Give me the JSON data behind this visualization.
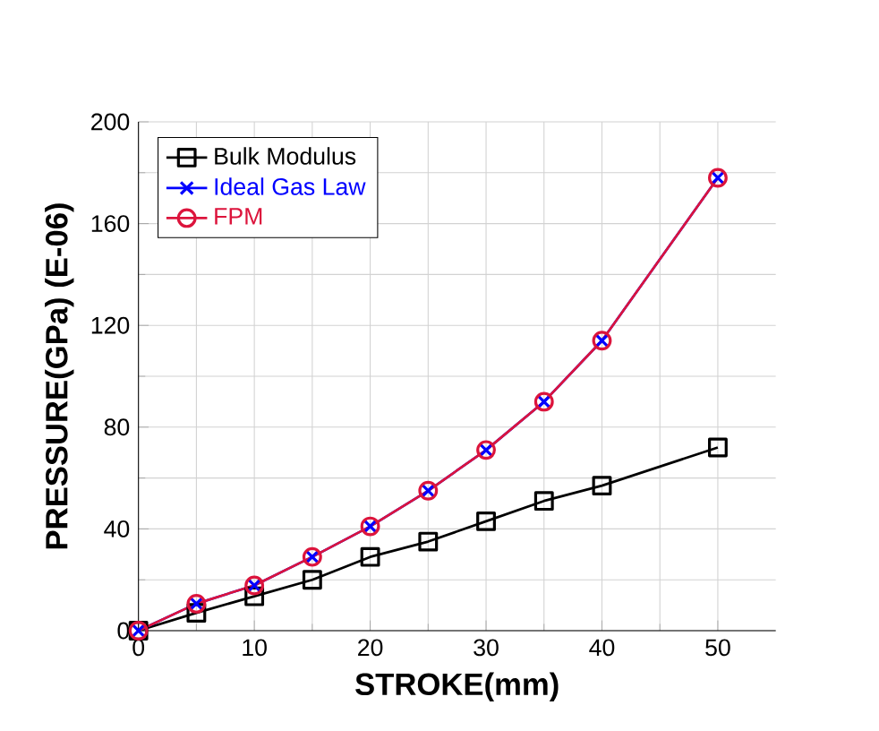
{
  "chart_data": {
    "type": "line",
    "xlabel": "STROKE(mm)",
    "ylabel": "PRESSURE(GPa) (E-06)",
    "xlim": [
      0,
      55
    ],
    "ylim": [
      0,
      200
    ],
    "xticks": [
      0,
      10,
      20,
      30,
      40,
      50
    ],
    "yticks": [
      0,
      40,
      80,
      120,
      160,
      200
    ],
    "grid": true,
    "legend": "top left",
    "line_style": "solid",
    "series": [
      {
        "name": "Bulk Modulus",
        "color": "#000000",
        "marker": "square",
        "x": [
          0,
          5,
          10,
          15,
          20,
          25,
          30,
          35,
          40,
          50
        ],
        "values": [
          0,
          7,
          13.5,
          20,
          29,
          35,
          43,
          51,
          57,
          72
        ]
      },
      {
        "name": "Ideal Gas Law",
        "color": "#0000ff",
        "marker": "cross",
        "x": [
          0,
          5,
          10,
          15,
          20,
          25,
          30,
          35,
          40,
          50
        ],
        "values": [
          0,
          10.6,
          17.8,
          29,
          41,
          55,
          71,
          90,
          114,
          178
        ]
      },
      {
        "name": "FPM",
        "color": "#dc143c",
        "marker": "circle",
        "x": [
          0,
          5,
          10,
          15,
          20,
          25,
          30,
          35,
          40,
          50
        ],
        "values": [
          0,
          10.6,
          17.8,
          29,
          41,
          55,
          71,
          90,
          114,
          178
        ]
      }
    ]
  }
}
